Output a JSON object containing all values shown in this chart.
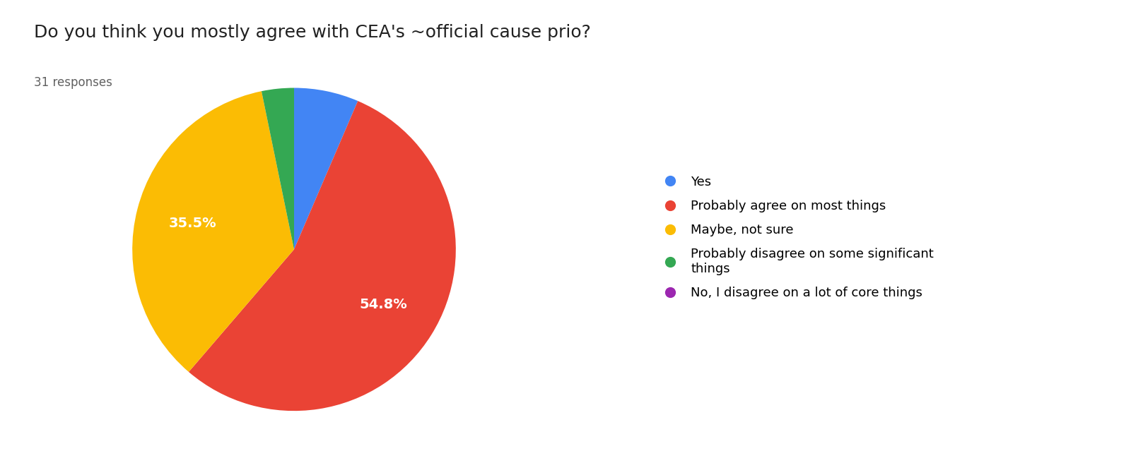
{
  "title": "Do you think you mostly agree with CEA's ~official cause prio?",
  "subtitle": "31 responses",
  "legend_labels": [
    "Yes",
    "Probably agree on most things",
    "Maybe, not sure",
    "Probably disagree on some significant\nthings",
    "No, I disagree on a lot of core things"
  ],
  "counts": [
    2,
    17,
    11,
    1,
    0
  ],
  "total": 31,
  "colors": [
    "#4285F4",
    "#EA4335",
    "#FBBC04",
    "#34A853",
    "#9C27B0"
  ],
  "startangle": 90,
  "title_fontsize": 18,
  "subtitle_fontsize": 12,
  "autopct_fontsize": 14,
  "legend_fontsize": 13,
  "background_color": "#ffffff"
}
